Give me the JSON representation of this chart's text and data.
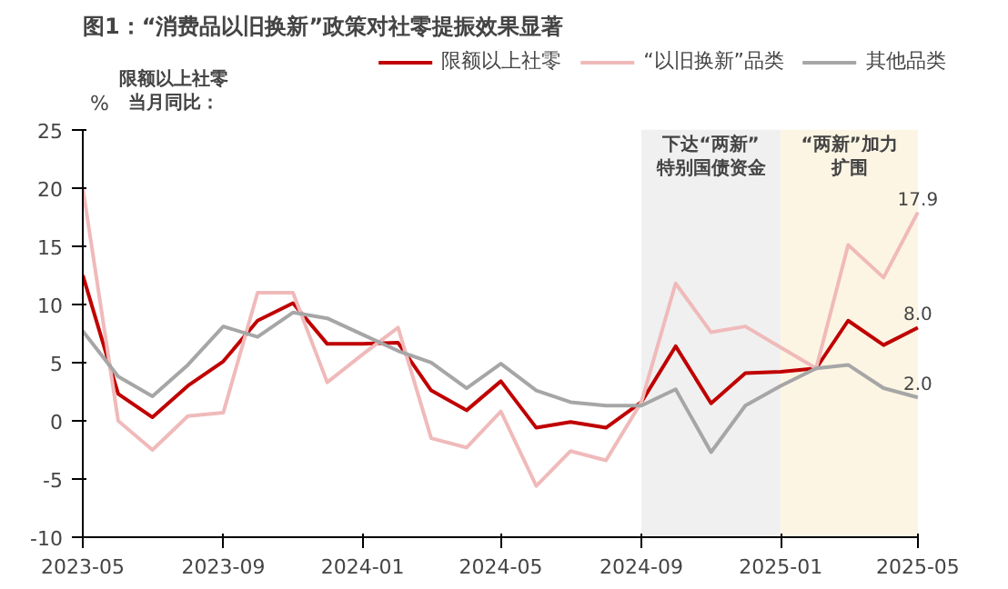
{
  "chart_data": {
    "type": "line",
    "title": "图1：“消费品以旧换新”政策对社零提振效果显著",
    "ylabel": "%",
    "x": [
      "2023-05",
      "2023-06",
      "2023-07",
      "2023-08",
      "2023-09",
      "2023-10",
      "2023-11",
      "2023-12",
      "2024-01",
      "2024-02",
      "2024-03",
      "2024-04",
      "2024-05",
      "2024-06",
      "2024-07",
      "2024-08",
      "2024-09",
      "2024-10",
      "2024-11",
      "2024-12",
      "2025-01",
      "2025-02",
      "2025-03",
      "2025-04",
      "2025-05"
    ],
    "series": [
      {
        "name": "限额以上社零",
        "color": "#c00000",
        "values": [
          12.5,
          2.3,
          0.3,
          3.0,
          5.1,
          8.6,
          10.1,
          6.6,
          6.6,
          6.7,
          2.6,
          0.9,
          3.4,
          -0.6,
          -0.1,
          -0.6,
          1.6,
          6.4,
          1.5,
          4.1,
          4.2,
          4.5,
          8.6,
          6.5,
          8.0
        ],
        "value_labels": [
          null,
          null,
          null,
          null,
          null,
          null,
          null,
          null,
          null,
          null,
          null,
          null,
          null,
          null,
          null,
          null,
          null,
          null,
          null,
          null,
          null,
          null,
          null,
          null,
          "8.0"
        ]
      },
      {
        "name": "“以旧换新”品类",
        "color": "#f0baba",
        "values": [
          20.0,
          0.0,
          -2.5,
          0.4,
          0.7,
          11.0,
          11.0,
          3.3,
          5.7,
          8.0,
          -1.5,
          -2.3,
          0.8,
          -5.6,
          -2.6,
          -3.4,
          1.6,
          11.8,
          7.6,
          8.1,
          6.3,
          4.5,
          15.1,
          12.3,
          17.9
        ],
        "value_labels": [
          null,
          null,
          null,
          null,
          null,
          null,
          null,
          null,
          null,
          null,
          null,
          null,
          null,
          null,
          null,
          null,
          null,
          null,
          null,
          null,
          null,
          null,
          null,
          null,
          "17.9"
        ]
      },
      {
        "name": "其他品类",
        "color": "#a6a6a6",
        "values": [
          7.7,
          3.8,
          2.1,
          4.8,
          8.1,
          7.2,
          9.3,
          8.8,
          7.4,
          6.0,
          5.0,
          2.8,
          4.9,
          2.6,
          1.6,
          1.3,
          1.3,
          2.7,
          -2.7,
          1.3,
          3.0,
          4.5,
          4.8,
          2.8,
          2.0
        ],
        "value_labels": [
          null,
          null,
          null,
          null,
          null,
          null,
          null,
          null,
          null,
          null,
          null,
          null,
          null,
          null,
          null,
          null,
          null,
          null,
          null,
          null,
          null,
          null,
          null,
          null,
          "2.0"
        ]
      }
    ],
    "xlim": [
      "2023-05",
      "2025-05"
    ],
    "xticks": [
      {
        "value": "2023-05",
        "label": "2023-05"
      },
      {
        "value": "2023-09",
        "label": "2023-09"
      },
      {
        "value": "2024-01",
        "label": "2024-01"
      },
      {
        "value": "2024-05",
        "label": "2024-05"
      },
      {
        "value": "2024-09",
        "label": "2024-09"
      },
      {
        "value": "2025-01",
        "label": "2025-01"
      },
      {
        "value": "2025-05",
        "label": "2025-05"
      }
    ],
    "ylim": [
      -10,
      25
    ],
    "yticks": [
      -10,
      -5,
      0,
      5,
      10,
      15,
      20,
      25
    ],
    "bands": [
      {
        "axis": "x",
        "from": "2024-09",
        "to": "2025-01",
        "label": "下达“两新”特别国债资金",
        "color": "#f0f0f0"
      },
      {
        "axis": "x",
        "from": "2025-01",
        "to": "2025-05",
        "label": "“两新”加力扩围",
        "color": "#fdf5e4"
      }
    ],
    "annotations": [
      "限额以上社零当月同比："
    ],
    "legend": "top",
    "grid": false,
    "marker": "none",
    "line_style": "solid"
  }
}
